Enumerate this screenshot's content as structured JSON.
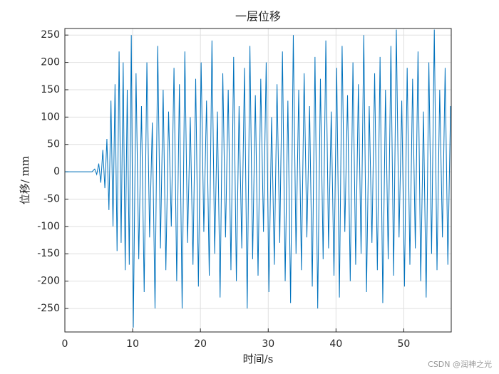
{
  "chart_data": {
    "type": "line",
    "title": "一层位移",
    "xlabel": "时间/s",
    "ylabel": "位移/ mm",
    "watermark": "CSDN @润神之光",
    "x": [
      0,
      4,
      4.4,
      4.7,
      5.0,
      5.3,
      5.6,
      5.9,
      6.2,
      6.5,
      6.8,
      7.1,
      7.4,
      7.7,
      8.0,
      8.3,
      8.6,
      8.9,
      9.2,
      9.5,
      9.8,
      10.1,
      10.5,
      10.9,
      11.3,
      11.7,
      12.1,
      12.5,
      12.9,
      13.3,
      13.7,
      14.1,
      14.5,
      14.9,
      15.3,
      15.7,
      16.1,
      16.5,
      16.9,
      17.3,
      17.7,
      18.1,
      18.5,
      18.9,
      19.3,
      19.7,
      20.1,
      20.5,
      20.9,
      21.3,
      21.7,
      22.1,
      22.5,
      22.9,
      23.3,
      23.7,
      24.1,
      24.5,
      24.9,
      25.3,
      25.7,
      26.1,
      26.5,
      26.9,
      27.3,
      27.7,
      28.1,
      28.5,
      28.9,
      29.3,
      29.7,
      30.1,
      30.5,
      30.9,
      31.3,
      31.7,
      32.1,
      32.5,
      32.9,
      33.3,
      33.7,
      34.1,
      34.5,
      34.9,
      35.3,
      35.7,
      36.1,
      36.5,
      36.9,
      37.3,
      37.7,
      38.1,
      38.5,
      38.9,
      39.3,
      39.7,
      40.1,
      40.5,
      40.9,
      41.3,
      41.7,
      42.1,
      42.5,
      42.9,
      43.3,
      43.7,
      44.1,
      44.5,
      44.9,
      45.3,
      45.7,
      46.1,
      46.5,
      46.9,
      47.3,
      47.7,
      48.1,
      48.5,
      48.9,
      49.3,
      49.7,
      50.1,
      50.5,
      50.9,
      51.3,
      51.7,
      52.1,
      52.5,
      52.9,
      53.3,
      53.7,
      54.1,
      54.5,
      54.9,
      55.3,
      55.7,
      56.1,
      56.5,
      56.9
    ],
    "series": [
      {
        "name": "一层位移",
        "color": "#0072bd",
        "values": [
          0,
          0,
          5,
          -5,
          15,
          -20,
          40,
          -30,
          60,
          -70,
          130,
          -100,
          160,
          -145,
          220,
          -130,
          200,
          -180,
          150,
          -170,
          250,
          -285,
          180,
          -160,
          120,
          -220,
          200,
          -120,
          90,
          -250,
          230,
          -140,
          150,
          -180,
          110,
          -100,
          190,
          -200,
          160,
          -250,
          220,
          -130,
          100,
          -170,
          170,
          -210,
          200,
          -110,
          130,
          -190,
          240,
          -150,
          110,
          -230,
          180,
          -120,
          150,
          -180,
          210,
          -200,
          120,
          -140,
          190,
          -250,
          230,
          -160,
          140,
          -190,
          170,
          -110,
          200,
          -220,
          100,
          -170,
          160,
          -130,
          220,
          -200,
          130,
          -240,
          250,
          -150,
          150,
          -180,
          180,
          -120,
          120,
          -210,
          210,
          -250,
          170,
          -160,
          240,
          -140,
          110,
          -190,
          190,
          -230,
          230,
          -110,
          140,
          -200,
          200,
          -170,
          160,
          -150,
          250,
          -220,
          120,
          -130,
          180,
          -180,
          210,
          -240,
          150,
          -160,
          230,
          -190,
          260,
          -120,
          130,
          -210,
          190,
          -170,
          170,
          -140,
          220,
          -200,
          110,
          -230,
          200,
          -150,
          260,
          -180,
          150,
          -120,
          190,
          -170,
          120
        ]
      }
    ],
    "xlim": [
      0,
      57
    ],
    "ylim": [
      -293,
      262
    ],
    "xticks": [
      0,
      10,
      20,
      30,
      40,
      50
    ],
    "yticks": [
      -250,
      -200,
      -150,
      -100,
      -50,
      0,
      50,
      100,
      150,
      200,
      250
    ],
    "grid": true
  }
}
